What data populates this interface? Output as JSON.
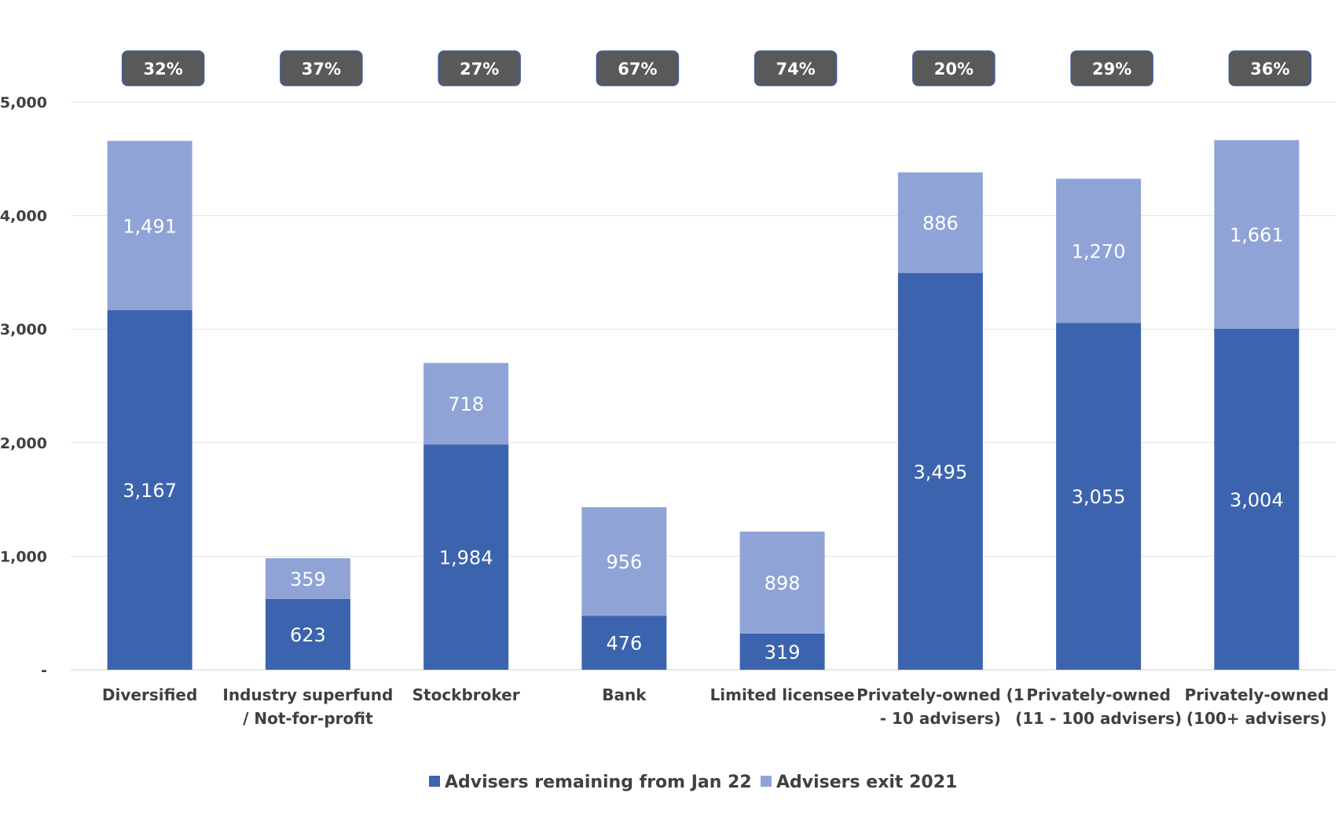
{
  "chart_data": {
    "type": "bar",
    "stacked": true,
    "categories": [
      [
        "Diversified"
      ],
      [
        "Industry superfund",
        "/ Not-for-profit"
      ],
      [
        "Stockbroker"
      ],
      [
        "Bank"
      ],
      [
        "Limited licensee"
      ],
      [
        "Privately-owned (1",
        "- 10 advisers)"
      ],
      [
        "Privately-owned",
        "(11 - 100 advisers)"
      ],
      [
        "Privately-owned",
        "(100+ advisers)"
      ]
    ],
    "series": [
      {
        "name": "Advisers remaining from Jan 22",
        "color": "#3c63ae",
        "values": [
          3167,
          623,
          1984,
          476,
          319,
          3495,
          3055,
          3004
        ],
        "labels": [
          "3,167",
          "623",
          "1,984",
          "476",
          "319",
          "3,495",
          "3,055",
          "3,004"
        ]
      },
      {
        "name": "Advisers exit 2021",
        "color": "#8fa3d6",
        "values": [
          1491,
          359,
          718,
          956,
          898,
          886,
          1270,
          1661
        ],
        "labels": [
          "1,491",
          "359",
          "718",
          "956",
          "898",
          "886",
          "1,270",
          "1,661"
        ]
      }
    ],
    "percent_badges": [
      "32%",
      "37%",
      "27%",
      "67%",
      "74%",
      "20%",
      "29%",
      "36%"
    ],
    "badge_color": "#595959",
    "ylim": [
      0,
      5000
    ],
    "yticks": [
      0,
      1000,
      2000,
      3000,
      4000,
      5000
    ],
    "ytick_labels": [
      "-",
      "1,000",
      "2,000",
      "3,000",
      "4,000",
      "5,000"
    ],
    "grid": true,
    "legend_position": "bottom"
  }
}
